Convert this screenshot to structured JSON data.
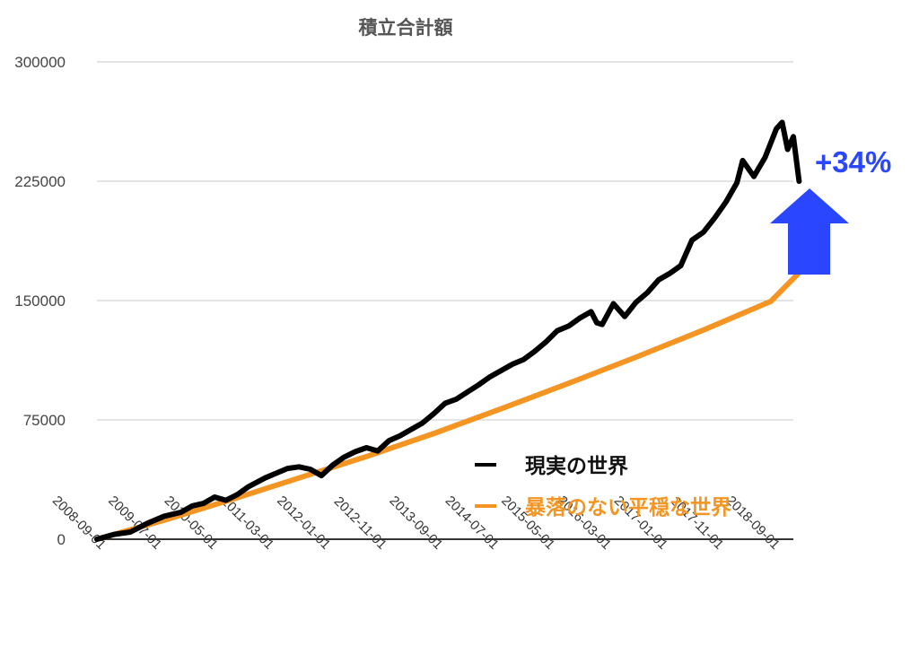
{
  "chart_data": {
    "type": "line",
    "title": "積立合計額",
    "ylim": [
      0,
      300000
    ],
    "y_ticks": [
      "0",
      "75000",
      "150000",
      "225000",
      "300000"
    ],
    "x_ticks": [
      "2008-09-01",
      "2009-07-01",
      "2010-05-01",
      "2011-03-01",
      "2012-01-01",
      "2012-11-01",
      "2013-09-01",
      "2014-07-01",
      "2015-05-01",
      "2016-03-01",
      "2017-01-01",
      "2017-11-01",
      "2018-09-01"
    ],
    "x_range": [
      "2008-09-01",
      "2019-01-01"
    ],
    "grid": true,
    "legend_position": "bottom-right",
    "series": [
      {
        "name": "現実の世界",
        "color": "#000000",
        "points": [
          [
            "2008-09-01",
            0
          ],
          [
            "2008-12-01",
            3000
          ],
          [
            "2009-03-01",
            4500
          ],
          [
            "2009-06-01",
            10000
          ],
          [
            "2009-09-01",
            14500
          ],
          [
            "2009-12-01",
            17000
          ],
          [
            "2010-02-01",
            21000
          ],
          [
            "2010-04-01",
            22500
          ],
          [
            "2010-06-01",
            26500
          ],
          [
            "2010-08-01",
            24500
          ],
          [
            "2010-10-01",
            28000
          ],
          [
            "2010-12-01",
            33000
          ],
          [
            "2011-03-01",
            38500
          ],
          [
            "2011-05-01",
            41500
          ],
          [
            "2011-07-01",
            44500
          ],
          [
            "2011-09-01",
            45500
          ],
          [
            "2011-11-01",
            44000
          ],
          [
            "2012-01-01",
            40000
          ],
          [
            "2012-03-01",
            46500
          ],
          [
            "2012-05-01",
            51500
          ],
          [
            "2012-07-01",
            55000
          ],
          [
            "2012-09-01",
            57500
          ],
          [
            "2012-11-01",
            55500
          ],
          [
            "2013-01-01",
            62000
          ],
          [
            "2013-03-01",
            65000
          ],
          [
            "2013-05-01",
            69000
          ],
          [
            "2013-07-01",
            73000
          ],
          [
            "2013-09-01",
            79000
          ],
          [
            "2013-11-01",
            85500
          ],
          [
            "2014-01-01",
            88000
          ],
          [
            "2014-03-01",
            92500
          ],
          [
            "2014-05-01",
            97000
          ],
          [
            "2014-07-01",
            102000
          ],
          [
            "2014-09-01",
            106000
          ],
          [
            "2014-11-01",
            110000
          ],
          [
            "2015-01-01",
            113000
          ],
          [
            "2015-03-01",
            118000
          ],
          [
            "2015-05-01",
            124000
          ],
          [
            "2015-07-01",
            131000
          ],
          [
            "2015-09-01",
            134000
          ],
          [
            "2015-11-01",
            139000
          ],
          [
            "2016-01-01",
            143000
          ],
          [
            "2016-02-01",
            136000
          ],
          [
            "2016-03-01",
            135000
          ],
          [
            "2016-05-01",
            148000
          ],
          [
            "2016-07-01",
            140000
          ],
          [
            "2016-09-01",
            149000
          ],
          [
            "2016-11-01",
            155000
          ],
          [
            "2017-01-01",
            163000
          ],
          [
            "2017-03-01",
            167000
          ],
          [
            "2017-05-01",
            172000
          ],
          [
            "2017-07-01",
            188000
          ],
          [
            "2017-09-01",
            193000
          ],
          [
            "2017-11-01",
            202000
          ],
          [
            "2018-01-01",
            212000
          ],
          [
            "2018-03-01",
            224000
          ],
          [
            "2018-04-01",
            238000
          ],
          [
            "2018-06-01",
            228000
          ],
          [
            "2018-08-01",
            240000
          ],
          [
            "2018-10-01",
            258000
          ],
          [
            "2018-11-01",
            262000
          ],
          [
            "2018-12-01",
            245000
          ],
          [
            "2019-01-01",
            253000
          ],
          [
            "2019-02-01",
            225000
          ]
        ]
      },
      {
        "name": "暴落のない平穏な世界",
        "color": "#f39423",
        "points": [
          [
            "2008-09-01",
            0
          ],
          [
            "2009-09-01",
            12000
          ],
          [
            "2010-09-01",
            25000
          ],
          [
            "2011-09-01",
            38500
          ],
          [
            "2012-09-01",
            52000
          ],
          [
            "2013-09-01",
            66500
          ],
          [
            "2014-09-01",
            82000
          ],
          [
            "2015-09-01",
            98000
          ],
          [
            "2016-09-01",
            114500
          ],
          [
            "2017-09-01",
            131500
          ],
          [
            "2018-09-01",
            149500
          ],
          [
            "2019-02-01",
            167500
          ]
        ]
      }
    ],
    "annotation": {
      "text": "+34%",
      "color": "#2a46ff"
    }
  }
}
